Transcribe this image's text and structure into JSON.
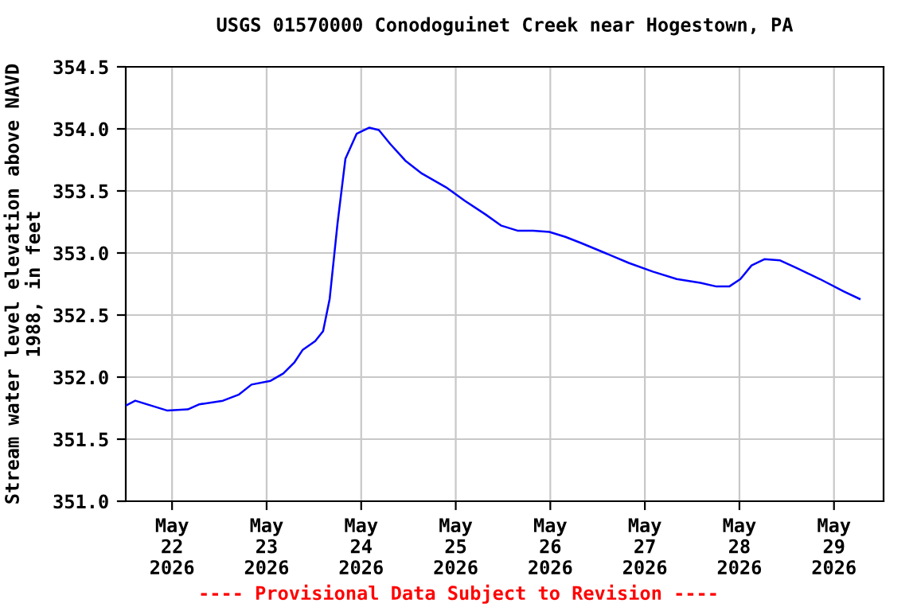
{
  "chart_data": {
    "type": "line",
    "title": "USGS 01570000 Conodoguinet Creek near Hogestown, PA",
    "ylabel": "Stream water level elevation above NAVD\n1988, in feet",
    "x": [
      "2026-05-21T12:15",
      "2026-05-21T14:40",
      "2026-05-21T18:45",
      "2026-05-21T22:50",
      "2026-05-22T04:00",
      "2026-05-22T06:50",
      "2026-05-22T12:55",
      "2026-05-22T17:00",
      "2026-05-22T20:10",
      "2026-05-23T01:00",
      "2026-05-23T04:15",
      "2026-05-23T07:05",
      "2026-05-23T09:10",
      "2026-05-23T12:20",
      "2026-05-23T14:20",
      "2026-05-23T16:00",
      "2026-05-23T18:00",
      "2026-05-23T20:00",
      "2026-05-23T22:50",
      "2026-05-24T02:05",
      "2026-05-24T04:30",
      "2026-05-24T07:20",
      "2026-05-24T11:20",
      "2026-05-24T15:25",
      "2026-05-24T21:30",
      "2026-05-25T02:20",
      "2026-05-25T07:35",
      "2026-05-25T11:35",
      "2026-05-25T15:40",
      "2026-05-25T19:40",
      "2026-05-25T23:45",
      "2026-05-26T03:50",
      "2026-05-26T07:50",
      "2026-05-26T13:55",
      "2026-05-26T19:55",
      "2026-05-27T02:00",
      "2026-05-27T08:05",
      "2026-05-27T14:05",
      "2026-05-27T18:10",
      "2026-05-27T21:25",
      "2026-05-28T00:15",
      "2026-05-28T03:05",
      "2026-05-28T06:20",
      "2026-05-28T10:20",
      "2026-05-28T14:25",
      "2026-05-28T20:25",
      "2026-05-29T02:30",
      "2026-05-29T06:30"
    ],
    "series": [
      {
        "color": "#0000ff",
        "values": [
          351.77,
          351.81,
          351.77,
          351.73,
          351.74,
          351.78,
          351.81,
          351.86,
          351.94,
          351.97,
          352.03,
          352.12,
          352.22,
          352.29,
          352.37,
          352.63,
          353.24,
          353.76,
          353.96,
          354.01,
          353.99,
          353.88,
          353.74,
          353.64,
          353.53,
          353.42,
          353.31,
          353.22,
          353.18,
          353.18,
          353.17,
          353.13,
          353.08,
          353.0,
          352.92,
          352.85,
          352.79,
          352.76,
          352.73,
          352.73,
          352.79,
          352.9,
          352.95,
          352.94,
          352.88,
          352.79,
          352.69,
          352.63
        ]
      }
    ],
    "xlim": [
      "2026-05-21T12:15",
      "2026-05-29T12:35"
    ],
    "xticks": [
      {
        "value": "2026-05-22",
        "label": "May\n22\n2026"
      },
      {
        "value": "2026-05-23",
        "label": "May\n23\n2026"
      },
      {
        "value": "2026-05-24",
        "label": "May\n24\n2026"
      },
      {
        "value": "2026-05-25",
        "label": "May\n25\n2026"
      },
      {
        "value": "2026-05-26",
        "label": "May\n26\n2026"
      },
      {
        "value": "2026-05-27",
        "label": "May\n27\n2026"
      },
      {
        "value": "2026-05-28",
        "label": "May\n28\n2026"
      },
      {
        "value": "2026-05-29",
        "label": "May\n29\n2026"
      }
    ],
    "ylim": [
      351.0,
      354.5
    ],
    "yticks": [
      {
        "value": 351.0,
        "label": "351.0"
      },
      {
        "value": 351.5,
        "label": "351.5"
      },
      {
        "value": 352.0,
        "label": "352.0"
      },
      {
        "value": 352.5,
        "label": "352.5"
      },
      {
        "value": 353.0,
        "label": "353.0"
      },
      {
        "value": 353.5,
        "label": "353.5"
      },
      {
        "value": 354.0,
        "label": "354.0"
      },
      {
        "value": 354.5,
        "label": "354.5"
      }
    ],
    "grid": true,
    "line_style": "solid",
    "marker": "none",
    "annotations": [
      "---- Provisional Data Subject to Revision ----"
    ]
  }
}
